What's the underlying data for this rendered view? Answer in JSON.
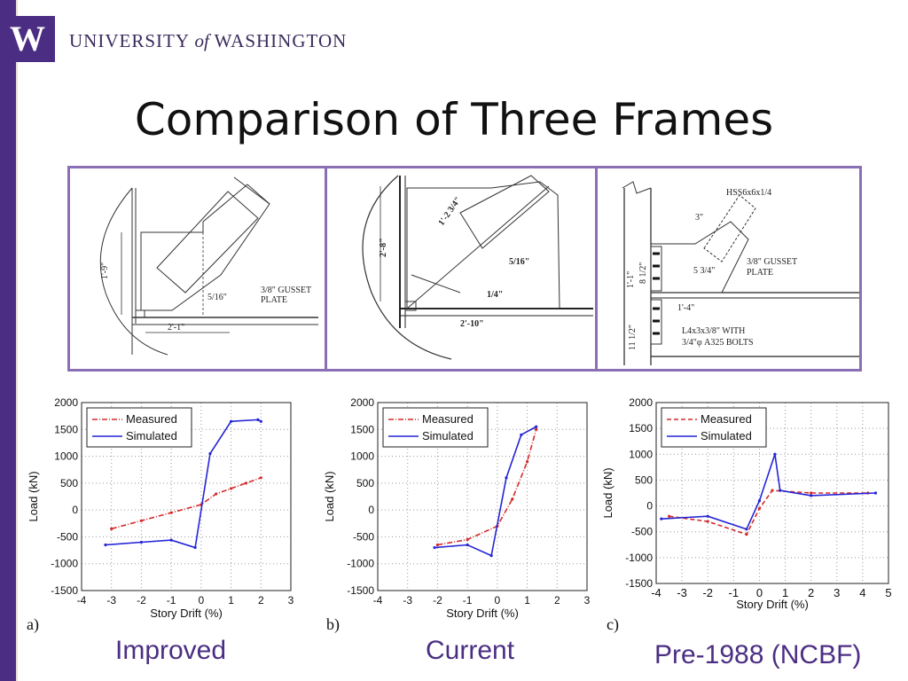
{
  "header": {
    "logo_letter": "W",
    "uni_pre": "UNIVERSITY ",
    "uni_of": "of",
    "uni_post": " WASHINGTON"
  },
  "title": "Comparison of Three Frames",
  "diagrams": {
    "a": {
      "height": "1'-9\"",
      "width": "2'-1\"",
      "weld": "5/16\"",
      "gusset_1": "3/8\" GUSSET",
      "gusset_2": "PLATE"
    },
    "b": {
      "height": "2'-8\"",
      "width": "2'-10\"",
      "diag": "1'-2 3/4\"",
      "weld_1": "5/16\"",
      "weld_2": "1/4\""
    },
    "c": {
      "hss": "HSS6x6x1/4",
      "offset": "3\"",
      "gusset_1": "3/8\" GUSSET",
      "gusset_2": "PLATE",
      "height_1": "1'-1\"",
      "height_2": "8 1/2\"",
      "gap": "5 3/4\"",
      "angle_w": "1'-4\"",
      "angle_1": "L4x3x3/8\" WITH",
      "angle_2": "3/4\"φ A325 BOLTS",
      "height_3": "11 1/2\""
    }
  },
  "colors": {
    "measured": "#d42a2a",
    "simulated": "#2424d6",
    "accent": "#4b2e83",
    "frame": "#8b6fb5"
  },
  "chart_data": [
    {
      "type": "line",
      "panel_label": "a)",
      "caption": "Improved",
      "xlabel": "Story Drift (%)",
      "ylabel": "Load (kN)",
      "xlim": [
        -4,
        3
      ],
      "ylim": [
        -1500,
        2000
      ],
      "xticks": [
        -4,
        -3,
        -2,
        -1,
        0,
        1,
        2,
        3
      ],
      "yticks": [
        2000,
        1500,
        1000,
        500,
        0,
        -500,
        -1000,
        -1500
      ],
      "grid": true,
      "legend": "top-left",
      "series": [
        {
          "name": "Measured",
          "style": "dash-dot",
          "x": [
            -3.0,
            -2.0,
            -1.0,
            0.0,
            0.5,
            1.0,
            1.5,
            2.0
          ],
          "y": [
            -350,
            -200,
            -50,
            100,
            300,
            400,
            500,
            600
          ]
        },
        {
          "name": "Simulated",
          "style": "solid",
          "x": [
            -3.2,
            -2.0,
            -1.0,
            -0.2,
            0.3,
            1.0,
            1.9,
            2.0
          ],
          "y": [
            -650,
            -600,
            -560,
            -700,
            1050,
            1650,
            1680,
            1650
          ]
        }
      ]
    },
    {
      "type": "line",
      "panel_label": "b)",
      "caption": "Current",
      "xlabel": "Story Drift (%)",
      "ylabel": "Load (kN)",
      "xlim": [
        -4,
        3
      ],
      "ylim": [
        -1500,
        2000
      ],
      "xticks": [
        -4,
        -3,
        -2,
        -1,
        0,
        1,
        2,
        3
      ],
      "yticks": [
        2000,
        1500,
        1000,
        500,
        0,
        -500,
        -1000,
        -1500
      ],
      "grid": true,
      "legend": "top-left",
      "series": [
        {
          "name": "Measured",
          "style": "dash-dot",
          "x": [
            -2.0,
            -1.0,
            0.0,
            0.5,
            1.0,
            1.3
          ],
          "y": [
            -650,
            -550,
            -300,
            200,
            900,
            1500
          ]
        },
        {
          "name": "Simulated",
          "style": "solid",
          "x": [
            -2.1,
            -1.0,
            -0.2,
            0.3,
            0.8,
            1.3
          ],
          "y": [
            -700,
            -650,
            -850,
            600,
            1400,
            1550
          ]
        }
      ]
    },
    {
      "type": "line",
      "panel_label": "c)",
      "caption": "Pre-1988 (NCBF)",
      "xlabel": "Story Drift (%)",
      "ylabel": "Load (kN)",
      "xlim": [
        -4,
        5
      ],
      "ylim": [
        -1500,
        2000
      ],
      "xticks": [
        -4,
        -3,
        -2,
        -1,
        0,
        1,
        2,
        3,
        4,
        5
      ],
      "yticks": [
        2000,
        1500,
        1000,
        500,
        0,
        -500,
        -1000,
        -1500
      ],
      "grid": true,
      "legend": "top-left",
      "series": [
        {
          "name": "Measured",
          "style": "dashed",
          "x": [
            -3.5,
            -2.0,
            -0.5,
            0.0,
            0.5,
            2.0,
            4.2
          ],
          "y": [
            -200,
            -300,
            -550,
            -50,
            300,
            250,
            250
          ]
        },
        {
          "name": "Simulated",
          "style": "solid",
          "x": [
            -3.8,
            -2.0,
            -0.5,
            0.0,
            0.6,
            0.8,
            2.0,
            4.5
          ],
          "y": [
            -250,
            -200,
            -450,
            100,
            1000,
            300,
            200,
            250
          ]
        }
      ]
    }
  ]
}
